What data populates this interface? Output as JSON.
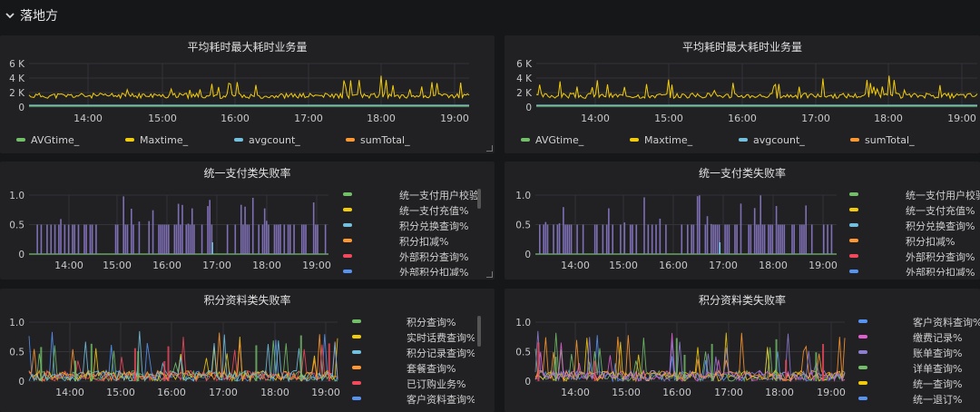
{
  "row": {
    "title": "落地方"
  },
  "colors": {
    "green": "#73bf69",
    "yellow": "#f2cc0c",
    "cyan": "#73c0de",
    "orange": "#ff9830",
    "red": "#f2495c",
    "blue": "#5794f2",
    "purple": "#8f7dcf",
    "magenta": "#e05fcf"
  },
  "panels": [
    {
      "id": "p1",
      "title": "平均耗时最大耗时业务量",
      "yticks": [
        "6 K",
        "4 K",
        "2 K",
        "0"
      ],
      "xticks": [
        "14:00",
        "15:00",
        "16:00",
        "17:00",
        "18:00",
        "19:00"
      ],
      "legend": [
        {
          "label": "AVGtime_",
          "color": "#73bf69"
        },
        {
          "label": "Maxtime_",
          "color": "#f2cc0c"
        },
        {
          "label": "avgcount_",
          "color": "#73c0de"
        },
        {
          "label": "sumTotal_",
          "color": "#ff9830"
        }
      ]
    },
    {
      "id": "p2",
      "title": "平均耗时最大耗时业务量",
      "yticks": [
        "6 K",
        "4 K",
        "2 K",
        "0"
      ],
      "xticks": [
        "14:00",
        "15:00",
        "16:00",
        "17:00",
        "18:00",
        "19:00"
      ],
      "legend": [
        {
          "label": "AVGtime_",
          "color": "#73bf69"
        },
        {
          "label": "Maxtime_",
          "color": "#f2cc0c"
        },
        {
          "label": "avgcount_",
          "color": "#73c0de"
        },
        {
          "label": "sumTotal_",
          "color": "#ff9830"
        }
      ]
    },
    {
      "id": "p3",
      "title": "统一支付类失败率",
      "yticks": [
        "1.0",
        "0.5",
        "0"
      ],
      "xticks": [
        "14:00",
        "15:00",
        "16:00",
        "17:00",
        "18:00",
        "19:00"
      ],
      "legend": [
        {
          "label": "统一支付用户校验",
          "color": "#73bf69"
        },
        {
          "label": "统一支付充值%",
          "color": "#f2cc0c"
        },
        {
          "label": "积分兑换查询%",
          "color": "#73c0de"
        },
        {
          "label": "积分扣减%",
          "color": "#ff9830"
        },
        {
          "label": "外部积分查询%",
          "color": "#f2495c"
        },
        {
          "label": "外部积分扣减%",
          "color": "#5794f2"
        }
      ]
    },
    {
      "id": "p4",
      "title": "统一支付类失败率",
      "yticks": [
        "1.0",
        "0.5",
        "0"
      ],
      "xticks": [
        "14:00",
        "15:00",
        "16:00",
        "17:00",
        "18:00",
        "19:00"
      ],
      "legend": [
        {
          "label": "统一支付用户校验",
          "color": "#73bf69"
        },
        {
          "label": "统一支付充值%",
          "color": "#f2cc0c"
        },
        {
          "label": "积分兑换查询%",
          "color": "#73c0de"
        },
        {
          "label": "积分扣减%",
          "color": "#ff9830"
        },
        {
          "label": "外部积分查询%",
          "color": "#f2495c"
        },
        {
          "label": "外部积分扣减%",
          "color": "#5794f2"
        }
      ]
    },
    {
      "id": "p5",
      "title": "积分资料类失败率",
      "yticks": [
        "1.0",
        "0.5",
        "0"
      ],
      "xticks": [
        "14:00",
        "15:00",
        "16:00",
        "17:00",
        "18:00",
        "19:00"
      ],
      "legend": [
        {
          "label": "积分查询%",
          "color": "#73bf69"
        },
        {
          "label": "实时话费查询%",
          "color": "#f2cc0c"
        },
        {
          "label": "积分记录查询%",
          "color": "#73c0de"
        },
        {
          "label": "套餐查询%",
          "color": "#ff9830"
        },
        {
          "label": "已订购业务%",
          "color": "#f2495c"
        },
        {
          "label": "客户资料查询%",
          "color": "#5794f2"
        }
      ]
    },
    {
      "id": "p6",
      "title": "积分资料类失败率",
      "yticks": [
        "1.0",
        "0.5",
        "0"
      ],
      "xticks": [
        "14:00",
        "15:00",
        "16:00",
        "17:00",
        "18:00",
        "19:00"
      ],
      "legend": [
        {
          "label": "客户资料查询%",
          "color": "#5794f2"
        },
        {
          "label": "缴费记录%",
          "color": "#e05fcf"
        },
        {
          "label": "账单查询%",
          "color": "#8f7dcf"
        },
        {
          "label": "详单查询%",
          "color": "#73bf69"
        },
        {
          "label": "统一查询%",
          "color": "#f2cc0c"
        },
        {
          "label": "统一退订%",
          "color": "#5794f2"
        }
      ]
    }
  ]
}
